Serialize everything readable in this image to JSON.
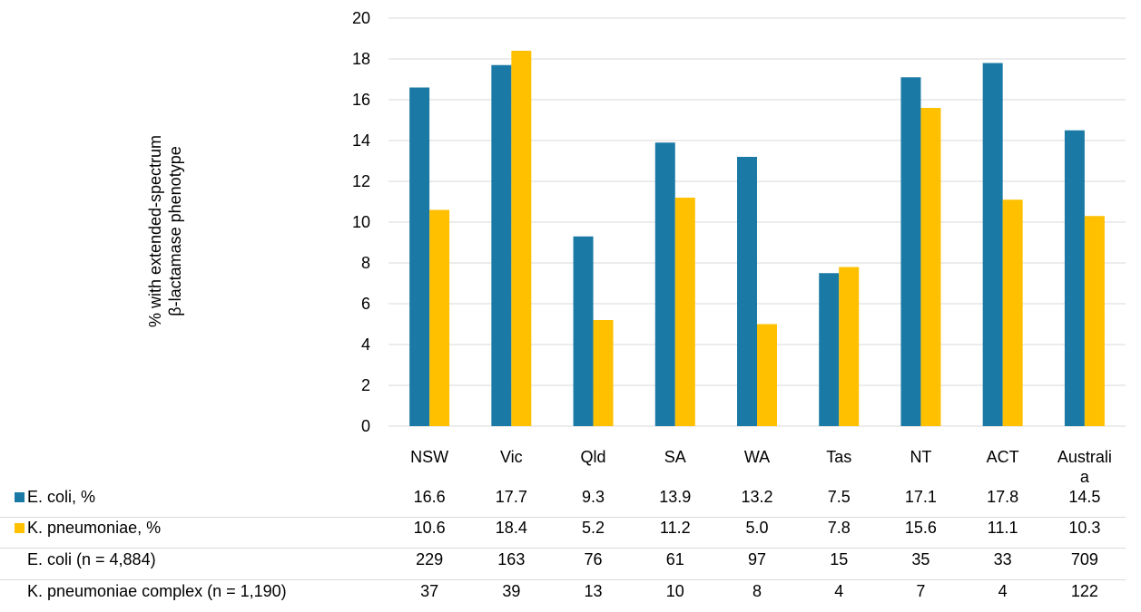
{
  "chart_data": {
    "type": "bar",
    "categories": [
      "NSW",
      "Vic",
      "Qld",
      "SA",
      "WA",
      "Tas",
      "NT",
      "ACT",
      "Australi\na"
    ],
    "ylabel_lines": [
      "% with extended-spectrum",
      "β-lactamase phenotype"
    ],
    "ylim": [
      0,
      20
    ],
    "yticks": [
      0,
      2,
      4,
      6,
      8,
      10,
      12,
      14,
      16,
      18,
      20
    ],
    "grid": true,
    "series": [
      {
        "name": "E. coli, %",
        "color": "#1b7aa5",
        "values": [
          16.6,
          17.7,
          9.3,
          13.9,
          13.2,
          7.5,
          17.1,
          17.8,
          14.5
        ]
      },
      {
        "name": "K. pneumoniae, %",
        "color": "#ffc000",
        "values": [
          10.6,
          18.4,
          5.2,
          11.2,
          5.0,
          7.8,
          15.6,
          11.1,
          10.3
        ]
      }
    ],
    "table": {
      "rows": [
        {
          "label": "E. coli, %",
          "swatch": "#1b7aa5",
          "cells": [
            "16.6",
            "17.7",
            "9.3",
            "13.9",
            "13.2",
            "7.5",
            "17.1",
            "17.8",
            "14.5"
          ]
        },
        {
          "label": "K. pneumoniae, %",
          "swatch": "#ffc000",
          "cells": [
            "10.6",
            "18.4",
            "5.2",
            "11.2",
            "5.0",
            "7.8",
            "15.6",
            "11.1",
            "10.3"
          ]
        },
        {
          "label": "E. coli (n = 4,884)",
          "swatch": null,
          "cells": [
            "229",
            "163",
            "76",
            "61",
            "97",
            "15",
            "35",
            "33",
            "709"
          ]
        },
        {
          "label": "K. pneumoniae complex (n = 1,190)",
          "swatch": null,
          "cells": [
            "37",
            "39",
            "13",
            "10",
            "8",
            "4",
            "7",
            "4",
            "122"
          ]
        }
      ]
    }
  }
}
